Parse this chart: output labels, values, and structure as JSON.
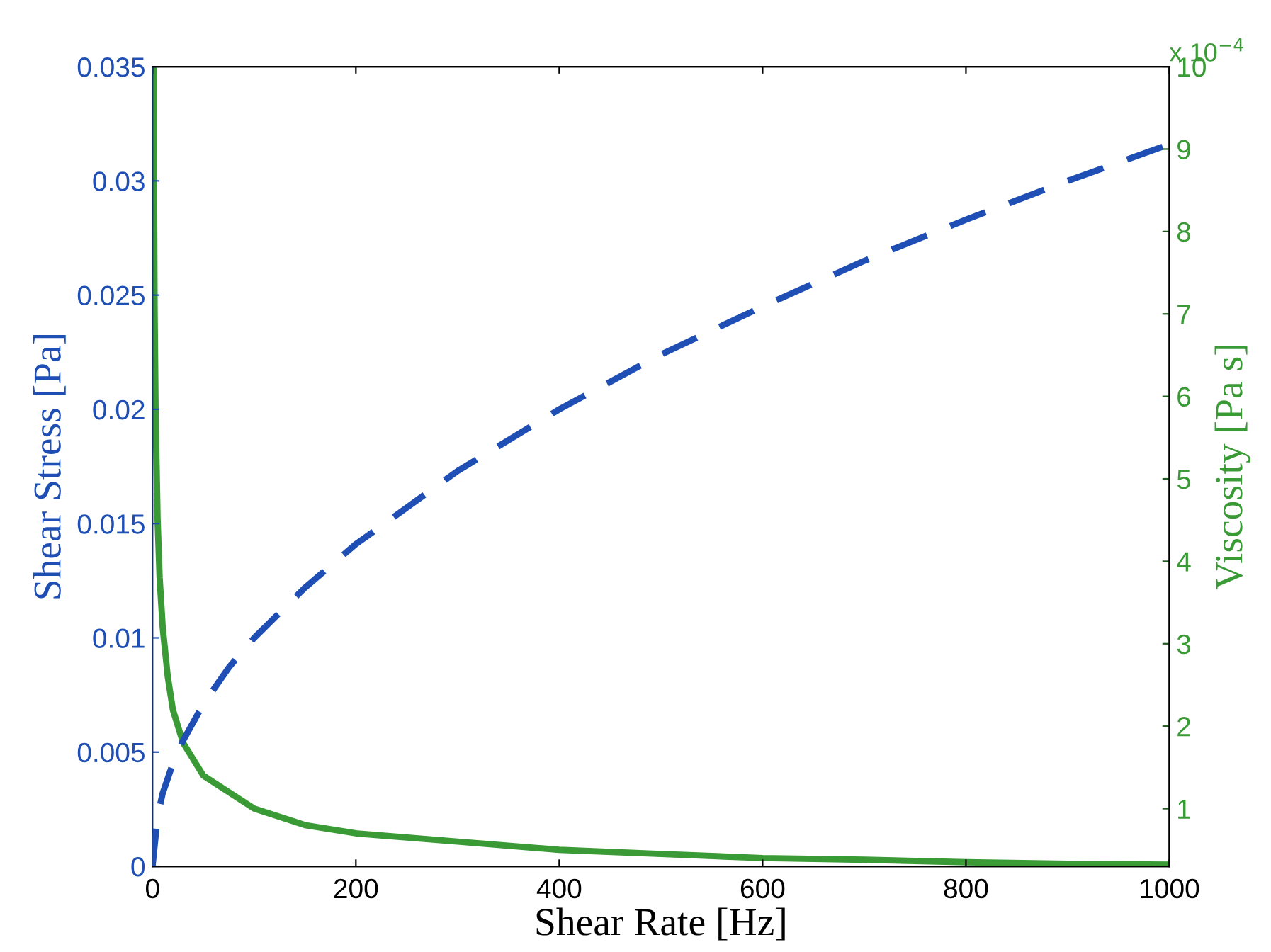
{
  "chart_data": {
    "type": "line",
    "xlabel": "Shear Rate [Hz]",
    "ylabel": "Shear Stress [Pa]",
    "y2label": "Viscosity [Pa s]",
    "xlim": [
      0,
      1000
    ],
    "xticks": [
      0,
      200,
      400,
      600,
      800,
      1000
    ],
    "ylim": [
      0,
      0.035
    ],
    "yticks": [
      0,
      0.005,
      0.01,
      0.015,
      0.02,
      0.025,
      0.03,
      0.035
    ],
    "y2lim": [
      0.3,
      10
    ],
    "y2ticks": [
      1,
      2,
      3,
      4,
      5,
      6,
      7,
      8,
      9,
      10
    ],
    "annotations": [
      "x 10$^{−4}$"
    ],
    "grid": false,
    "legend": false,
    "marker": "none",
    "series": [
      {
        "color": "#1f4fb4",
        "line_style": "dashed",
        "x": [
          0,
          5,
          10,
          20,
          30,
          50,
          75,
          100,
          150,
          200,
          300,
          400,
          500,
          600,
          700,
          800,
          900,
          1000
        ],
        "values": [
          0,
          0.0022,
          0.0032,
          0.0045,
          0.0055,
          0.0071,
          0.0087,
          0.01,
          0.0122,
          0.0141,
          0.0173,
          0.02,
          0.0224,
          0.0245,
          0.0265,
          0.0283,
          0.03,
          0.0316
        ]
      },
      {
        "color": "#3a9a35",
        "line_style": "solid",
        "axis": "y2",
        "x": [
          1,
          2,
          3,
          5,
          7,
          10,
          15,
          20,
          30,
          50,
          75,
          100,
          150,
          200,
          300,
          400,
          500,
          600,
          700,
          800,
          900,
          1000
        ],
        "values": [
          10,
          7.1,
          5.8,
          4.5,
          3.8,
          3.2,
          2.6,
          2.2,
          1.8,
          1.4,
          1.2,
          1.0,
          0.8,
          0.7,
          0.6,
          0.5,
          0.45,
          0.4,
          0.38,
          0.35,
          0.33,
          0.32
        ]
      }
    ]
  }
}
